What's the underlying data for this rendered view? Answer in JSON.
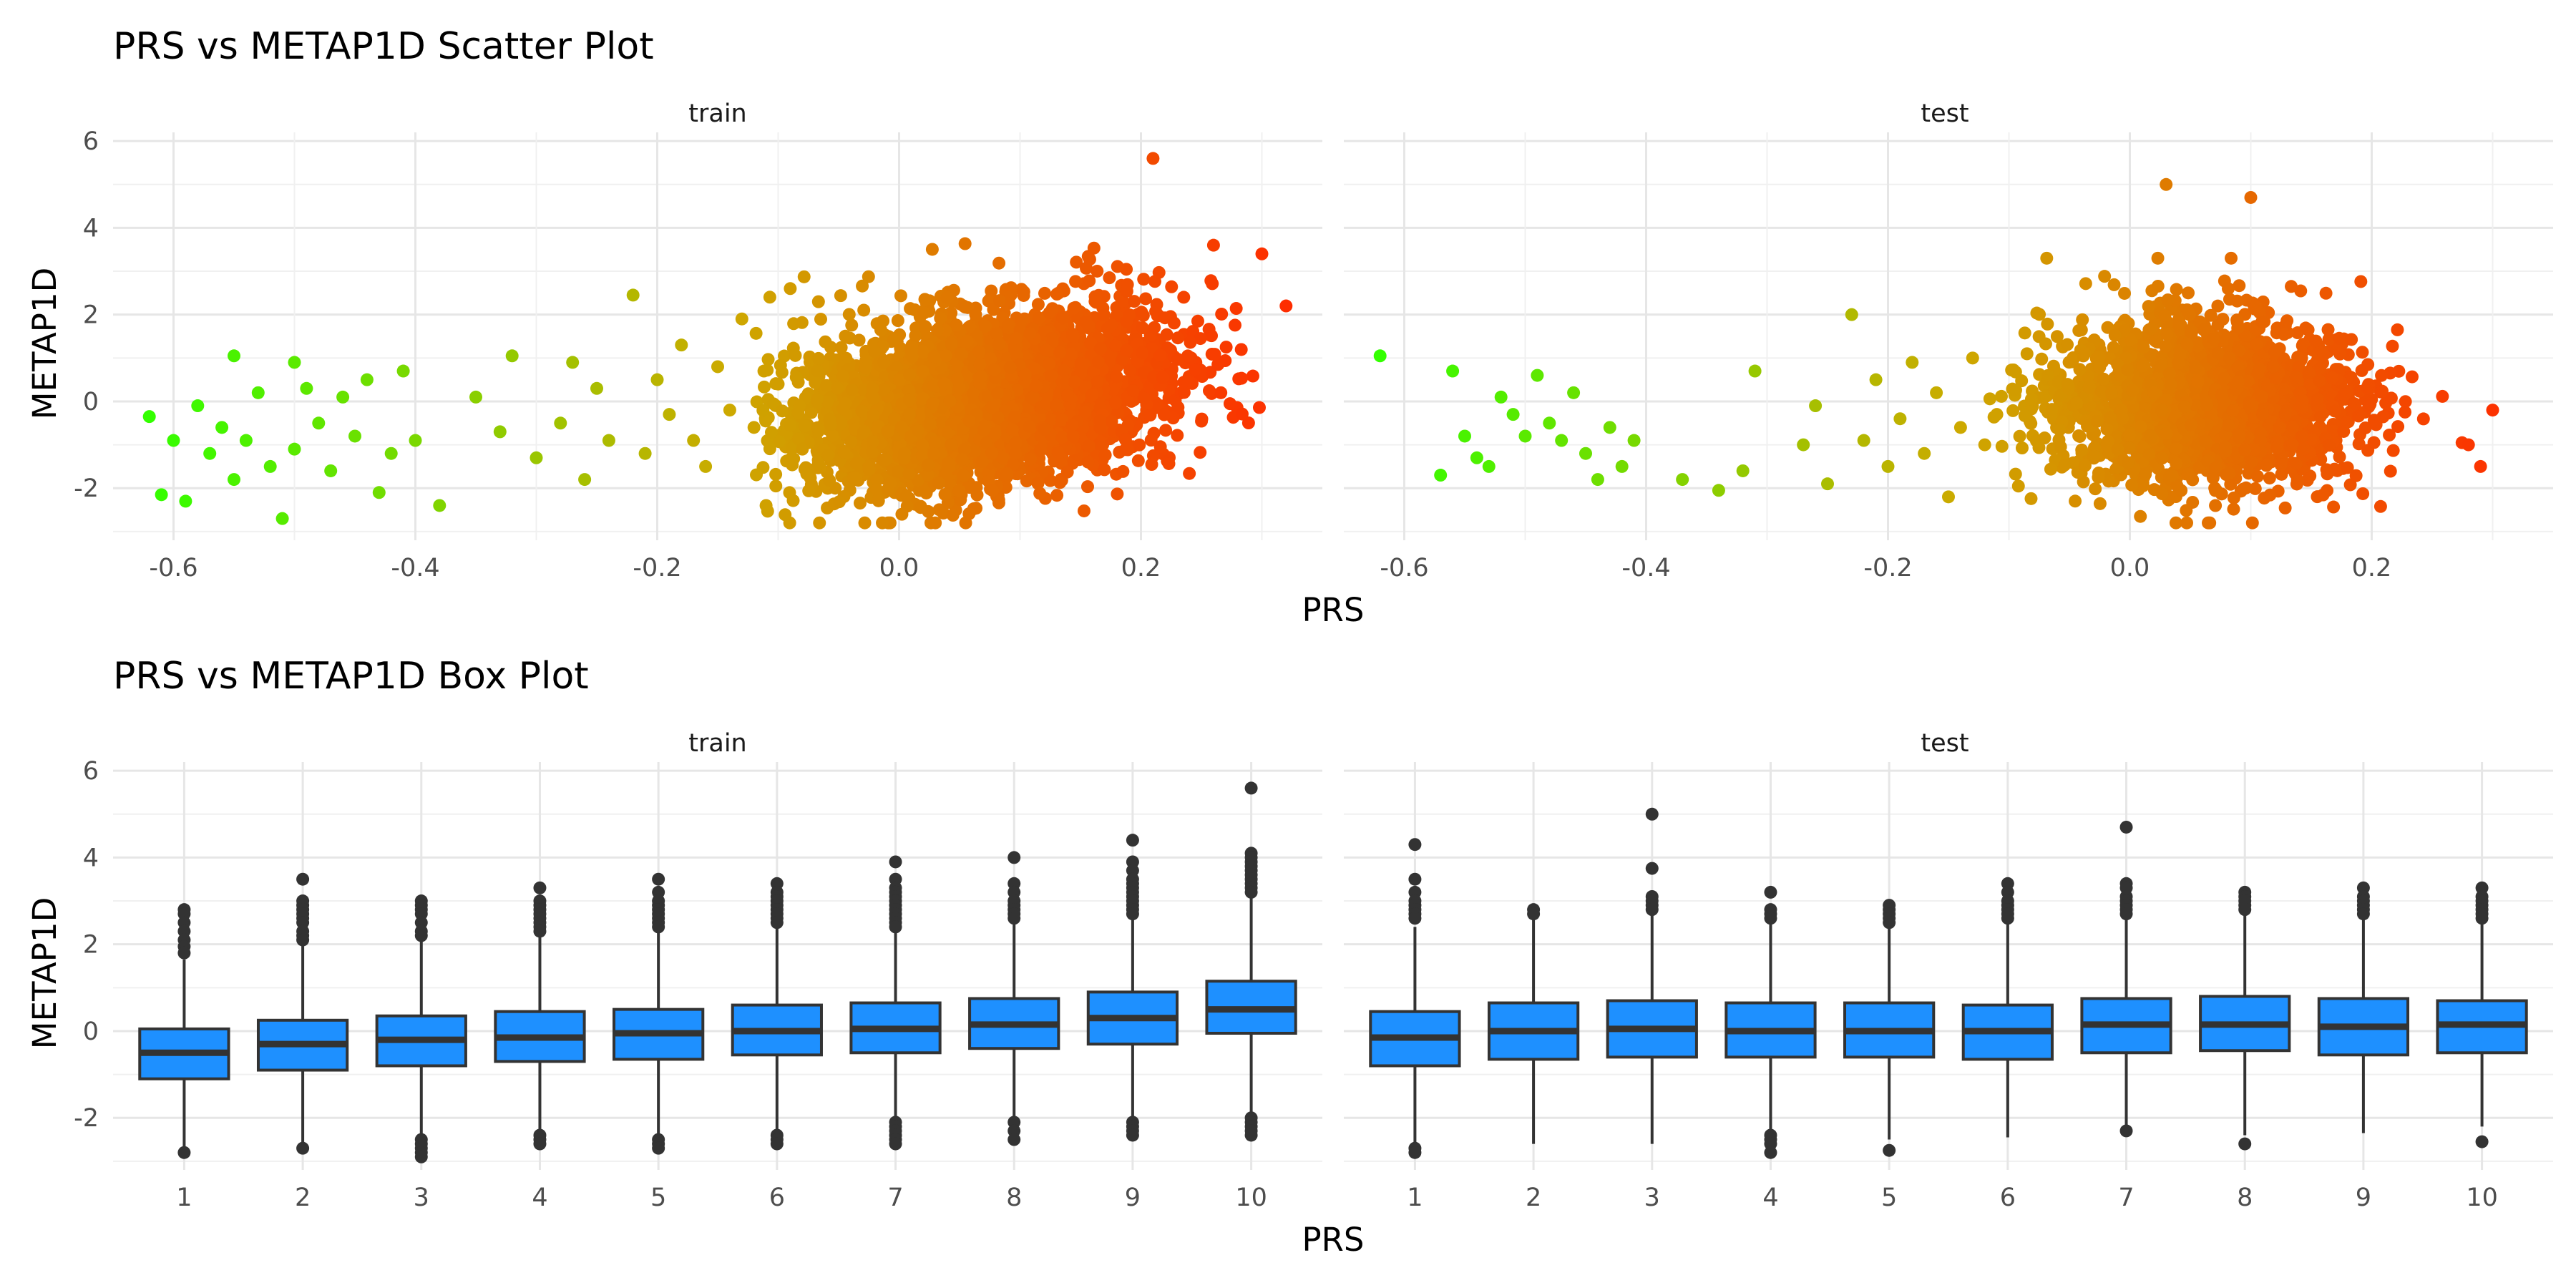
{
  "chart_data": [
    {
      "type": "scatter",
      "title": "PRS vs METAP1D Scatter Plot",
      "xlabel": "PRS",
      "ylabel": "METAP1D",
      "panels": [
        "train",
        "test"
      ],
      "xlim": [
        -0.65,
        0.35
      ],
      "ylim": [
        -3.2,
        6.2
      ],
      "x_ticks": [
        "-0.6",
        "-0.4",
        "-0.2",
        "0.0",
        "0.2"
      ],
      "y_ticks": [
        "-2",
        "0",
        "2",
        "4",
        "6"
      ],
      "grid": true,
      "color_gradient": [
        "#33ff00",
        "#ccaa00",
        "#ff2a00"
      ],
      "series": [
        {
          "panel": "train",
          "x": [
            -0.62,
            -0.61,
            -0.6,
            -0.59,
            -0.58,
            -0.57,
            -0.56,
            -0.55,
            -0.55,
            -0.54,
            -0.53,
            -0.52,
            -0.51,
            -0.5,
            -0.5,
            -0.49,
            -0.48,
            -0.47,
            -0.46,
            -0.45,
            -0.44,
            -0.43,
            -0.42,
            -0.41,
            -0.4,
            -0.38,
            -0.35,
            -0.33,
            -0.32,
            -0.3,
            -0.28,
            -0.27,
            -0.26,
            -0.25,
            -0.24,
            -0.22,
            -0.21,
            -0.2,
            -0.19,
            -0.18,
            -0.17,
            -0.16,
            -0.15,
            -0.14,
            -0.13,
            -0.12,
            -0.11,
            -0.1,
            -0.09,
            -0.08,
            0.21,
            0.26,
            0.3,
            0.32
          ],
          "y": [
            -0.35,
            -2.15,
            -0.9,
            -2.3,
            -0.1,
            -1.2,
            -0.6,
            1.05,
            -1.8,
            -0.9,
            0.2,
            -1.5,
            -2.7,
            0.9,
            -1.1,
            0.3,
            -0.5,
            -1.6,
            0.1,
            -0.8,
            0.5,
            -2.1,
            -1.2,
            0.7,
            -0.9,
            -2.4,
            0.1,
            -0.7,
            1.05,
            -1.3,
            -0.5,
            0.9,
            -1.8,
            0.3,
            -0.9,
            2.45,
            -1.2,
            0.5,
            -0.3,
            1.3,
            -0.9,
            -1.5,
            0.8,
            -0.2,
            1.9,
            -0.6,
            -2.4,
            0.4,
            2.6,
            -1.1,
            5.6,
            3.6,
            3.4,
            2.2
          ]
        },
        {
          "panel": "test",
          "x": [
            -0.62,
            -0.57,
            -0.56,
            -0.55,
            -0.54,
            -0.53,
            -0.52,
            -0.51,
            -0.5,
            -0.49,
            -0.48,
            -0.47,
            -0.46,
            -0.45,
            -0.44,
            -0.43,
            -0.42,
            -0.41,
            -0.37,
            -0.34,
            -0.32,
            -0.31,
            -0.27,
            -0.26,
            -0.25,
            -0.23,
            -0.22,
            -0.21,
            -0.2,
            -0.19,
            -0.18,
            -0.17,
            -0.16,
            -0.15,
            -0.14,
            -0.13,
            -0.12,
            -0.11,
            0.03,
            0.1,
            0.28,
            0.29,
            0.3
          ],
          "y": [
            1.05,
            -1.7,
            0.7,
            -0.8,
            -1.3,
            -1.5,
            0.1,
            -0.3,
            -0.8,
            0.6,
            -0.5,
            -0.9,
            0.2,
            -1.2,
            -1.8,
            -0.6,
            -1.5,
            -0.9,
            -1.8,
            -2.05,
            -1.6,
            0.7,
            -1.0,
            -0.1,
            -1.9,
            2.0,
            -0.9,
            0.5,
            -1.5,
            -0.4,
            0.9,
            -1.2,
            0.2,
            -2.2,
            -0.6,
            1.0,
            -1.0,
            -0.3,
            5.0,
            4.7,
            -1.0,
            -1.5,
            -0.2
          ]
        }
      ]
    },
    {
      "type": "box",
      "title": "PRS vs METAP1D Box Plot",
      "xlabel": "PRS",
      "ylabel": "METAP1D",
      "panels": [
        "train",
        "test"
      ],
      "categories": [
        "1",
        "2",
        "3",
        "4",
        "5",
        "6",
        "7",
        "8",
        "9",
        "10"
      ],
      "ylim": [
        -3.2,
        6.2
      ],
      "y_ticks": [
        "-2",
        "0",
        "2",
        "4",
        "6"
      ],
      "grid": true,
      "box_color": "#1e90ff",
      "series": [
        {
          "panel": "train",
          "boxes": [
            {
              "q1": -1.1,
              "median": -0.5,
              "q3": 0.05,
              "whisker_low": -2.7,
              "whisker_high": 1.65,
              "outliers": [
                2.8,
                2.7,
                2.5,
                2.3,
                2.1,
                1.95,
                1.8,
                -2.8
              ]
            },
            {
              "q1": -0.9,
              "median": -0.3,
              "q3": 0.25,
              "whisker_low": -2.6,
              "whisker_high": 2.0,
              "outliers": [
                3.5,
                3.0,
                2.9,
                2.8,
                2.7,
                2.6,
                2.5,
                2.3,
                2.2,
                2.1,
                -2.7
              ]
            },
            {
              "q1": -0.8,
              "median": -0.2,
              "q3": 0.35,
              "whisker_low": -2.4,
              "whisker_high": 2.1,
              "outliers": [
                3.0,
                2.9,
                2.8,
                2.7,
                2.5,
                2.3,
                2.2,
                -2.5,
                -2.6,
                -2.7,
                -2.8,
                -2.9
              ]
            },
            {
              "q1": -0.7,
              "median": -0.15,
              "q3": 0.45,
              "whisker_low": -2.35,
              "whisker_high": 2.2,
              "outliers": [
                3.3,
                3.0,
                2.9,
                2.8,
                2.7,
                2.6,
                2.5,
                2.4,
                2.3,
                -2.4,
                -2.5,
                -2.6
              ]
            },
            {
              "q1": -0.65,
              "median": -0.05,
              "q3": 0.5,
              "whisker_low": -2.4,
              "whisker_high": 2.3,
              "outliers": [
                3.5,
                3.2,
                3.0,
                2.9,
                2.8,
                2.7,
                2.6,
                2.5,
                2.4,
                -2.5,
                -2.6,
                -2.7
              ]
            },
            {
              "q1": -0.55,
              "median": 0.0,
              "q3": 0.6,
              "whisker_low": -2.35,
              "whisker_high": 2.4,
              "outliers": [
                3.4,
                3.2,
                3.1,
                3.0,
                2.9,
                2.8,
                2.7,
                2.6,
                2.5,
                -2.4,
                -2.5,
                -2.6
              ]
            },
            {
              "q1": -0.5,
              "median": 0.05,
              "q3": 0.65,
              "whisker_low": -2.05,
              "whisker_high": 2.3,
              "outliers": [
                3.9,
                3.5,
                3.3,
                3.2,
                3.1,
                3.0,
                2.9,
                2.8,
                2.7,
                2.6,
                2.5,
                2.4,
                -2.1,
                -2.2,
                -2.3,
                -2.4,
                -2.5,
                -2.6
              ]
            },
            {
              "q1": -0.4,
              "median": 0.15,
              "q3": 0.75,
              "whisker_low": -2.1,
              "whisker_high": 2.5,
              "outliers": [
                4.0,
                3.4,
                3.2,
                3.0,
                2.9,
                2.8,
                2.7,
                2.6,
                -2.1,
                -2.3,
                -2.5
              ]
            },
            {
              "q1": -0.3,
              "median": 0.3,
              "q3": 0.9,
              "whisker_low": -2.05,
              "whisker_high": 2.6,
              "outliers": [
                4.4,
                3.9,
                3.7,
                3.5,
                3.4,
                3.3,
                3.2,
                3.1,
                3.0,
                2.9,
                2.8,
                2.7,
                -2.1,
                -2.2,
                -2.3,
                -2.4
              ]
            },
            {
              "q1": -0.05,
              "median": 0.5,
              "q3": 1.15,
              "whisker_low": -1.9,
              "whisker_high": 3.1,
              "outliers": [
                5.6,
                4.1,
                4.0,
                3.9,
                3.8,
                3.7,
                3.6,
                3.5,
                3.4,
                3.3,
                3.2,
                -2.0,
                -2.1,
                -2.2,
                -2.3,
                -2.4
              ]
            }
          ]
        },
        {
          "panel": "test",
          "boxes": [
            {
              "q1": -0.8,
              "median": -0.15,
              "q3": 0.45,
              "whisker_low": -2.6,
              "whisker_high": 2.4,
              "outliers": [
                4.3,
                3.5,
                3.2,
                3.0,
                2.9,
                2.8,
                2.7,
                2.6,
                -2.7,
                -2.8
              ]
            },
            {
              "q1": -0.65,
              "median": 0.0,
              "q3": 0.65,
              "whisker_low": -2.6,
              "whisker_high": 2.6,
              "outliers": [
                2.8,
                2.7
              ]
            },
            {
              "q1": -0.6,
              "median": 0.05,
              "q3": 0.7,
              "whisker_low": -2.6,
              "whisker_high": 2.7,
              "outliers": [
                5.0,
                3.75,
                3.1,
                3.0,
                2.9,
                2.8
              ]
            },
            {
              "q1": -0.6,
              "median": 0.0,
              "q3": 0.65,
              "whisker_low": -2.35,
              "whisker_high": 2.5,
              "outliers": [
                3.2,
                2.8,
                2.7,
                2.6,
                -2.4,
                -2.5,
                -2.6,
                -2.8
              ]
            },
            {
              "q1": -0.6,
              "median": 0.0,
              "q3": 0.65,
              "whisker_low": -2.5,
              "whisker_high": 2.4,
              "outliers": [
                2.9,
                2.8,
                2.7,
                2.6,
                2.5,
                -2.75
              ]
            },
            {
              "q1": -0.65,
              "median": 0.0,
              "q3": 0.6,
              "whisker_low": -2.45,
              "whisker_high": 2.5,
              "outliers": [
                3.4,
                3.2,
                3.0,
                2.9,
                2.8,
                2.7,
                2.6
              ]
            },
            {
              "q1": -0.5,
              "median": 0.15,
              "q3": 0.75,
              "whisker_low": -2.2,
              "whisker_high": 2.6,
              "outliers": [
                4.7,
                3.4,
                3.3,
                3.1,
                3.0,
                2.9,
                2.8,
                2.7,
                -2.3
              ]
            },
            {
              "q1": -0.45,
              "median": 0.15,
              "q3": 0.8,
              "whisker_low": -2.4,
              "whisker_high": 2.7,
              "outliers": [
                3.2,
                3.1,
                3.0,
                2.9,
                2.8,
                -2.6
              ]
            },
            {
              "q1": -0.55,
              "median": 0.1,
              "q3": 0.75,
              "whisker_low": -2.35,
              "whisker_high": 2.6,
              "outliers": [
                3.3,
                3.1,
                3.0,
                2.9,
                2.8,
                2.7
              ]
            },
            {
              "q1": -0.5,
              "median": 0.15,
              "q3": 0.7,
              "whisker_low": -2.2,
              "whisker_high": 2.55,
              "outliers": [
                3.3,
                3.1,
                3.0,
                2.9,
                2.8,
                2.7,
                2.6,
                -2.55
              ]
            }
          ]
        }
      ]
    }
  ]
}
